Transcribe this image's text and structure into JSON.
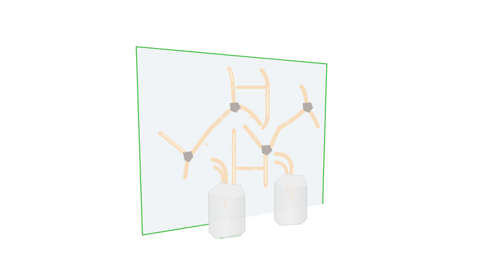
{
  "viewport": {
    "background": "#ffffff"
  },
  "colors": {
    "selection_outline": "#2bb52b",
    "panel_fill": "#e3ebee",
    "tube": "#f7ddbd",
    "tube_highlight": "#fcefdc",
    "connector": "#b3aca6",
    "tank": "#e6e6e6",
    "tank_edge": "#d6d6d6"
  },
  "scene": {
    "object": "tube-panel",
    "selected": true,
    "connectors": 4,
    "tanks": 2
  }
}
